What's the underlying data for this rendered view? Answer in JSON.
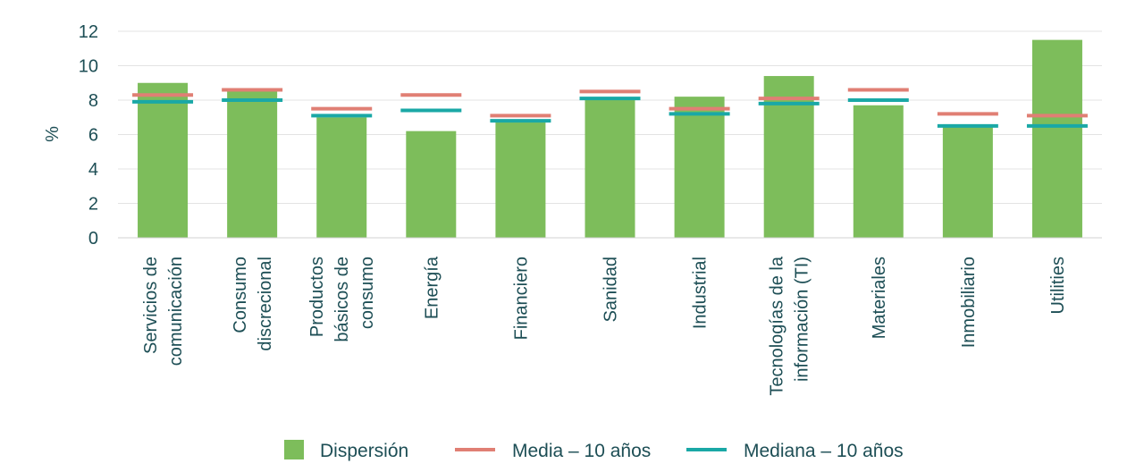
{
  "chart_data": {
    "type": "bar",
    "ylabel": "%",
    "ylim": [
      0,
      12
    ],
    "yticks": [
      0,
      2,
      4,
      6,
      8,
      10,
      12
    ],
    "grid": true,
    "legend_position": "bottom",
    "categories": [
      [
        "Servicios de",
        "comunicación"
      ],
      [
        "Consumo",
        "discrecional"
      ],
      [
        "Productos",
        "básicos de",
        "consumo"
      ],
      [
        "Energía"
      ],
      [
        "Financiero"
      ],
      [
        "Sanidad"
      ],
      [
        "Industrial"
      ],
      [
        "Tecnologías de la",
        "información (TI)"
      ],
      [
        "Materiales"
      ],
      [
        "Inmobiliario"
      ],
      [
        "Utilities"
      ]
    ],
    "series": [
      {
        "name": "Dispersión",
        "kind": "bar",
        "color": "#7dbd5b",
        "values": [
          9.0,
          8.6,
          7.0,
          6.2,
          6.7,
          8.1,
          8.2,
          9.4,
          7.7,
          6.6,
          11.5
        ]
      },
      {
        "name": "Media – 10 años",
        "kind": "level",
        "color": "#e07f74",
        "values": [
          8.3,
          8.6,
          7.5,
          8.3,
          7.1,
          8.5,
          7.5,
          8.1,
          8.6,
          7.2,
          7.1
        ]
      },
      {
        "name": "Mediana – 10 años",
        "kind": "level",
        "color": "#1aa8a6",
        "values": [
          7.9,
          8.0,
          7.1,
          7.4,
          6.8,
          8.1,
          7.2,
          7.8,
          8.0,
          6.5,
          6.5
        ]
      }
    ]
  }
}
